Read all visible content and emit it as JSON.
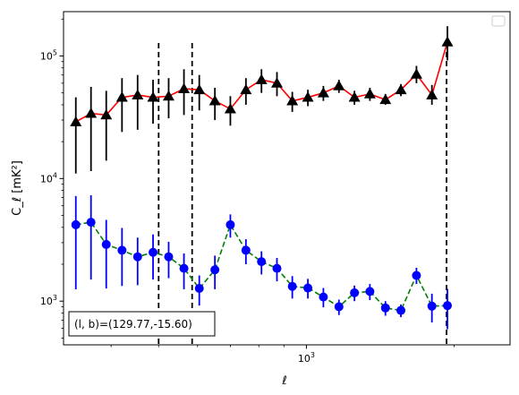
{
  "chart_data": {
    "type": "line",
    "xlabel": "ℓ",
    "ylabel": "C_ℓ  [mK²]",
    "xscale": "log",
    "yscale": "log",
    "xlim": [
      320,
      2600
    ],
    "ylim": [
      440,
      230000
    ],
    "grid": false,
    "legend": "upper-right (empty)",
    "x_major_ticks": [
      {
        "value": 1000,
        "label": "10",
        "sup": "3"
      }
    ],
    "y_major_ticks": [
      {
        "value": 1000,
        "label": "10",
        "sup": "3"
      },
      {
        "value": 10000,
        "label": "10",
        "sup": "4"
      },
      {
        "value": 100000,
        "label": "10",
        "sup": "5"
      }
    ],
    "annotation": "(l, b)=(129.77,-15.60)",
    "vlines": [
      {
        "x": 500,
        "style": "dashed",
        "color": "#000000"
      },
      {
        "x": 585,
        "style": "dashed",
        "color": "#000000"
      },
      {
        "x": 1930,
        "style": "dashed",
        "color": "#000000"
      }
    ],
    "series": [
      {
        "color": "#000000",
        "line_color": "#ff0000",
        "line_style": "solid",
        "marker": "triangle",
        "points": [
          {
            "x": 339,
            "y": 29000,
            "lo": 11000,
            "hi": 46000
          },
          {
            "x": 364,
            "y": 34000,
            "lo": 11500,
            "hi": 56000
          },
          {
            "x": 391,
            "y": 33000,
            "lo": 14000,
            "hi": 52000
          },
          {
            "x": 421,
            "y": 46000,
            "lo": 24000,
            "hi": 66000
          },
          {
            "x": 453,
            "y": 48000,
            "lo": 25000,
            "hi": 70000
          },
          {
            "x": 487,
            "y": 46000,
            "lo": 28000,
            "hi": 64000
          },
          {
            "x": 524,
            "y": 47000,
            "lo": 31000,
            "hi": 66000
          },
          {
            "x": 563,
            "y": 54000,
            "lo": 33000,
            "hi": 78000
          },
          {
            "x": 605,
            "y": 53000,
            "lo": 36000,
            "hi": 70000
          },
          {
            "x": 651,
            "y": 43000,
            "lo": 30000,
            "hi": 55000
          },
          {
            "x": 700,
            "y": 37000,
            "lo": 27000,
            "hi": 47000
          },
          {
            "x": 753,
            "y": 53000,
            "lo": 40000,
            "hi": 66000
          },
          {
            "x": 810,
            "y": 64000,
            "lo": 50000,
            "hi": 78000
          },
          {
            "x": 871,
            "y": 60000,
            "lo": 47000,
            "hi": 74000
          },
          {
            "x": 936,
            "y": 43000,
            "lo": 35000,
            "hi": 51000
          },
          {
            "x": 1007,
            "y": 46000,
            "lo": 39000,
            "hi": 53000
          },
          {
            "x": 1083,
            "y": 50000,
            "lo": 43000,
            "hi": 57000
          },
          {
            "x": 1165,
            "y": 57000,
            "lo": 50000,
            "hi": 64000
          },
          {
            "x": 1253,
            "y": 46000,
            "lo": 40000,
            "hi": 52000
          },
          {
            "x": 1347,
            "y": 49000,
            "lo": 43000,
            "hi": 55000
          },
          {
            "x": 1449,
            "y": 44000,
            "lo": 40000,
            "hi": 49000
          },
          {
            "x": 1558,
            "y": 53000,
            "lo": 47000,
            "hi": 59000
          },
          {
            "x": 1676,
            "y": 71000,
            "lo": 60000,
            "hi": 83000
          },
          {
            "x": 1802,
            "y": 48000,
            "lo": 40000,
            "hi": 58000
          },
          {
            "x": 1938,
            "y": 130000,
            "lo": 92000,
            "hi": 175000
          }
        ]
      },
      {
        "color": "#0000ff",
        "line_color": "#008000",
        "line_style": "dashed",
        "marker": "circle",
        "points": [
          {
            "x": 339,
            "y": 4200,
            "lo": 1250,
            "hi": 7200
          },
          {
            "x": 364,
            "y": 4400,
            "lo": 1500,
            "hi": 7300
          },
          {
            "x": 391,
            "y": 2900,
            "lo": 1270,
            "hi": 4600
          },
          {
            "x": 421,
            "y": 2600,
            "lo": 1330,
            "hi": 3950
          },
          {
            "x": 453,
            "y": 2300,
            "lo": 1350,
            "hi": 3300
          },
          {
            "x": 487,
            "y": 2500,
            "lo": 1500,
            "hi": 3500
          },
          {
            "x": 524,
            "y": 2300,
            "lo": 1540,
            "hi": 3050
          },
          {
            "x": 563,
            "y": 1850,
            "lo": 1250,
            "hi": 2450
          },
          {
            "x": 605,
            "y": 1270,
            "lo": 920,
            "hi": 1620
          },
          {
            "x": 651,
            "y": 1800,
            "lo": 1250,
            "hi": 2350
          },
          {
            "x": 700,
            "y": 4200,
            "lo": 3300,
            "hi": 5100
          },
          {
            "x": 753,
            "y": 2600,
            "lo": 2000,
            "hi": 3200
          },
          {
            "x": 810,
            "y": 2100,
            "lo": 1650,
            "hi": 2550
          },
          {
            "x": 871,
            "y": 1850,
            "lo": 1450,
            "hi": 2250
          },
          {
            "x": 936,
            "y": 1320,
            "lo": 1050,
            "hi": 1600
          },
          {
            "x": 1007,
            "y": 1280,
            "lo": 1050,
            "hi": 1520
          },
          {
            "x": 1083,
            "y": 1080,
            "lo": 890,
            "hi": 1280
          },
          {
            "x": 1165,
            "y": 900,
            "lo": 770,
            "hi": 1030
          },
          {
            "x": 1253,
            "y": 1170,
            "lo": 1000,
            "hi": 1340
          },
          {
            "x": 1347,
            "y": 1200,
            "lo": 1020,
            "hi": 1380
          },
          {
            "x": 1449,
            "y": 880,
            "lo": 760,
            "hi": 1000
          },
          {
            "x": 1558,
            "y": 840,
            "lo": 740,
            "hi": 940
          },
          {
            "x": 1676,
            "y": 1620,
            "lo": 1380,
            "hi": 1870
          },
          {
            "x": 1802,
            "y": 910,
            "lo": 670,
            "hi": 1150
          },
          {
            "x": 1938,
            "y": 920,
            "lo": 590,
            "hi": 1260
          }
        ]
      }
    ]
  }
}
